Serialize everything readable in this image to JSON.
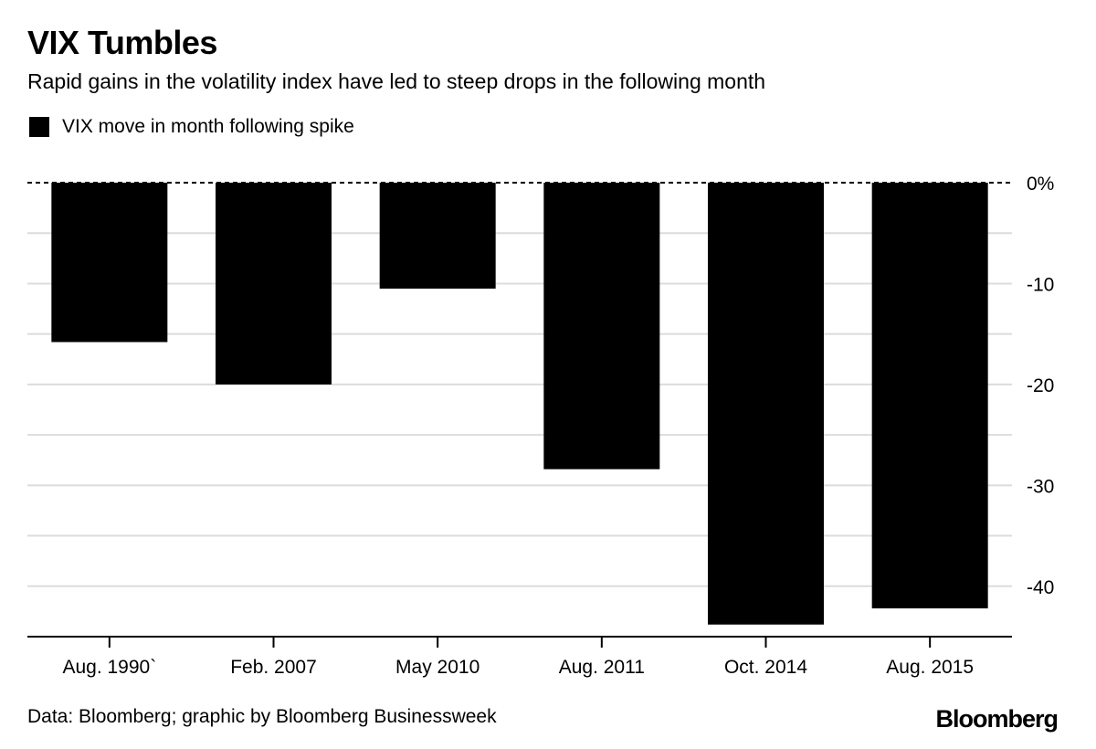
{
  "title": "VIX Tumbles",
  "subtitle": "Rapid gains in the volatility index have led to steep drops in the following month",
  "legend": {
    "label": "VIX move in month following spike"
  },
  "source": "Data: Bloomberg; graphic by Bloomberg Businessweek",
  "brand": "Bloomberg",
  "chart_data": {
    "type": "bar",
    "categories": [
      "Aug. 1990`",
      "Feb. 2007",
      "May 2010",
      "Aug. 2011",
      "Oct. 2014",
      "Aug. 2015"
    ],
    "series": [
      {
        "name": "VIX move in month following spike",
        "values": [
          -15.8,
          -20.0,
          -10.5,
          -28.4,
          -43.8,
          -42.2
        ]
      }
    ],
    "ylim": [
      -45,
      0
    ],
    "yticks": [
      0,
      -10,
      -20,
      -30,
      -40
    ],
    "ytick_labels": [
      "0%",
      "-10",
      "-20",
      "-30",
      "-40"
    ],
    "bar_color": "#000000",
    "grid": true,
    "xlabel": "",
    "ylabel": ""
  }
}
